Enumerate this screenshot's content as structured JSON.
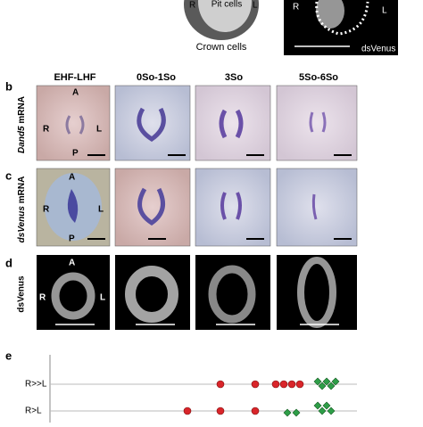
{
  "top": {
    "schematic": {
      "pit": "Pit cells",
      "left": "R",
      "right": "L",
      "crown": "Crown cells"
    },
    "image": {
      "left": "R",
      "right": "L",
      "label": "dsVenus"
    }
  },
  "columns": [
    "EHF-LHF",
    "0So-1So",
    "3So",
    "5So-6So"
  ],
  "panel_b": {
    "letter": "b",
    "gene": "Dand5",
    "suffix": "mRNA",
    "anterior": "A",
    "posterior": "P",
    "left": "R",
    "right": "L"
  },
  "panel_c": {
    "letter": "c",
    "gene": "dsVenus",
    "suffix": "mRNA",
    "anterior": "A",
    "posterior": "P",
    "left": "R",
    "right": "L"
  },
  "panel_d": {
    "letter": "d",
    "label": "dsVenus",
    "anterior": "A",
    "left": "R",
    "right": "L"
  },
  "panel_e": {
    "letter": "e",
    "rows": [
      "R>>L",
      "R>L"
    ]
  }
}
